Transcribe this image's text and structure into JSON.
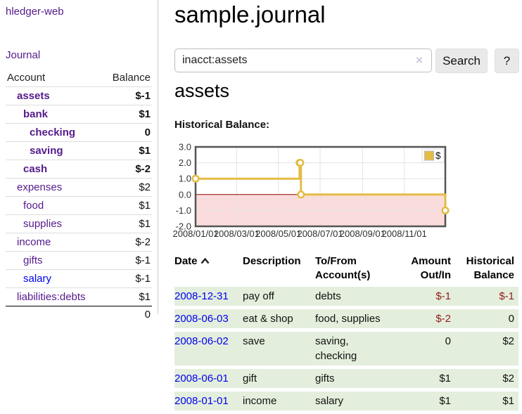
{
  "sidebar": {
    "brand": "hledger-web",
    "journal_link": "Journal",
    "table": {
      "account_header": "Account",
      "balance_header": "Balance",
      "rows": [
        {
          "account": "assets",
          "level": 0,
          "balance": "$-1",
          "emphasis": true
        },
        {
          "account": "bank",
          "level": 1,
          "balance": "$1",
          "emphasis": true
        },
        {
          "account": "checking",
          "level": 2,
          "balance": "0",
          "emphasis": true
        },
        {
          "account": "saving",
          "level": 2,
          "balance": "$1",
          "emphasis": true
        },
        {
          "account": "cash",
          "level": 1,
          "balance": "$-2",
          "emphasis": true
        },
        {
          "account": "expenses",
          "level": 0,
          "balance": "$2",
          "emphasis": false
        },
        {
          "account": "food",
          "level": 1,
          "balance": "$1",
          "emphasis": false
        },
        {
          "account": "supplies",
          "level": 1,
          "balance": "$1",
          "emphasis": false
        },
        {
          "account": "income",
          "level": 0,
          "balance": "$-2",
          "emphasis": false
        },
        {
          "account": "gifts",
          "level": 1,
          "balance": "$-1",
          "emphasis": false
        },
        {
          "account": "salary",
          "level": 1,
          "balance": "$-1",
          "emphasis": false,
          "unvisited": true
        },
        {
          "account": "liabilities:debts",
          "level": 0,
          "balance": "$1",
          "emphasis": false
        }
      ],
      "total": "0"
    }
  },
  "main": {
    "title": "sample.journal",
    "search": {
      "value": "inacct:assets",
      "clear_icon": "×",
      "search_button": "Search",
      "help_button": "?"
    },
    "account_heading": "assets",
    "chart_label": "Historical Balance:"
  },
  "chart_data": {
    "type": "line",
    "style": "step-after",
    "title": "Historical Balance",
    "series": [
      {
        "name": "$",
        "color": "#e4bc43",
        "points": [
          [
            "2008-01-01",
            1
          ],
          [
            "2008-06-01",
            2
          ],
          [
            "2008-06-02",
            2
          ],
          [
            "2008-06-03",
            0
          ],
          [
            "2008-12-31",
            -1
          ]
        ]
      }
    ],
    "xlim": [
      "2008-01-01",
      "2008-12-31"
    ],
    "ylim": [
      -2,
      3
    ],
    "x_ticks": [
      "2008/01/01",
      "2008/03/01",
      "2008/05/01",
      "2008/07/01",
      "2008/09/01",
      "2008/11/01"
    ],
    "y_ticks": [
      3.0,
      2.0,
      1.0,
      0.0,
      -1.0,
      -2.0
    ],
    "grid": true,
    "legend_position": "top-right",
    "negative_region_color": "#fbdcdc",
    "zero_line_color": "#8b0000",
    "grid_color": "#e3e3e3",
    "border_color": "#545454"
  },
  "register": {
    "headers": {
      "date": "Date",
      "description": "Description",
      "accounts": "To/From Account(s)",
      "amount": "Amount Out/In",
      "balance": "Historical Balance"
    },
    "rows": [
      {
        "date": "2008-12-31",
        "description": "pay off",
        "accounts": "debts",
        "amount": "$-1",
        "balance": "$-1"
      },
      {
        "date": "2008-06-03",
        "description": "eat & shop",
        "accounts": "food, supplies",
        "amount": "$-2",
        "balance": "0"
      },
      {
        "date": "2008-06-02",
        "description": "save",
        "accounts": "saving, checking",
        "amount": "0",
        "balance": "$2"
      },
      {
        "date": "2008-06-01",
        "description": "gift",
        "accounts": "gifts",
        "amount": "$1",
        "balance": "$2"
      },
      {
        "date": "2008-01-01",
        "description": "income",
        "accounts": "salary",
        "amount": "$1",
        "balance": "$1"
      }
    ]
  }
}
